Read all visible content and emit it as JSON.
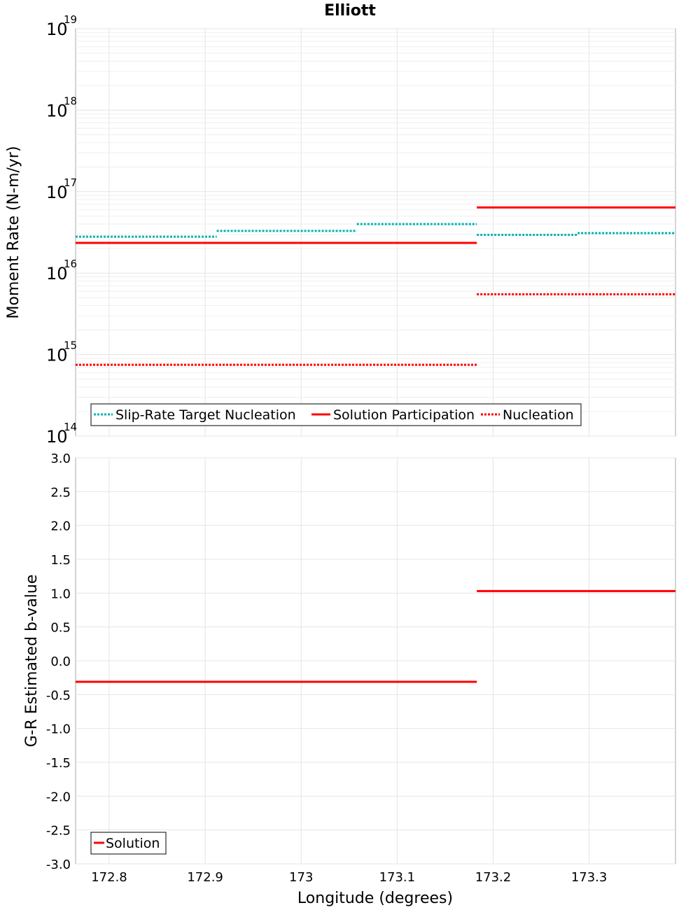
{
  "figure": {
    "title": "Elliott",
    "xlabel": "Longitude (degrees)"
  },
  "colors": {
    "target": "#00b3b3",
    "participation": "#ff0000",
    "nucleation": "#ff0000"
  },
  "chart_data": [
    {
      "type": "line",
      "panel": "moment-rate",
      "ylabel": "Moment Rate (N-m/yr)",
      "yscale": "log",
      "ylim": [
        100000000000000.0,
        1e+19
      ],
      "xlim": [
        172.765,
        173.39
      ],
      "grid": true,
      "legend_position": "bottom-left",
      "y_ticks": [
        {
          "base": "10",
          "exp": "14",
          "value": 100000000000000.0
        },
        {
          "base": "10",
          "exp": "15",
          "value": 1000000000000000.0
        },
        {
          "base": "10",
          "exp": "16",
          "value": 1e+16
        },
        {
          "base": "10",
          "exp": "17",
          "value": 1e+17
        },
        {
          "base": "10",
          "exp": "18",
          "value": 1e+18
        },
        {
          "base": "10",
          "exp": "19",
          "value": 1e+19
        }
      ],
      "series": [
        {
          "name": "Slip-Rate Target Nucleation",
          "style": "dotted",
          "color": "#00b3b3",
          "segments": [
            {
              "x": [
                172.765,
                172.912
              ],
              "y": 2.8e+16
            },
            {
              "x": [
                172.912,
                173.058
              ],
              "y": 3.3e+16
            },
            {
              "x": [
                173.058,
                173.183
              ],
              "y": 4e+16
            },
            {
              "x": [
                173.183,
                173.288
              ],
              "y": 2.95e+16
            },
            {
              "x": [
                173.288,
                173.39
              ],
              "y": 3.1e+16
            }
          ]
        },
        {
          "name": "Solution Participation",
          "style": "solid",
          "color": "#ff0000",
          "segments": [
            {
              "x": [
                172.765,
                173.183
              ],
              "y": 2.35e+16
            },
            {
              "x": [
                173.183,
                173.39
              ],
              "y": 6.4e+16
            }
          ]
        },
        {
          "name": "Nucleation",
          "style": "dotted",
          "color": "#ff0000",
          "segments": [
            {
              "x": [
                172.765,
                173.183
              ],
              "y": 750000000000000.0
            },
            {
              "x": [
                173.183,
                173.39
              ],
              "y": 5500000000000000.0
            }
          ]
        }
      ]
    },
    {
      "type": "line",
      "panel": "b-value",
      "ylabel": "G-R Estimated b-value",
      "ylim": [
        -3.0,
        3.0
      ],
      "xlim": [
        172.765,
        173.39
      ],
      "grid": true,
      "legend_position": "bottom-left",
      "y_tick_labels": [
        "3.0",
        "2.5",
        "2.0",
        "1.5",
        "1.0",
        "0.5",
        "0.0",
        "-0.5",
        "-1.0",
        "-1.5",
        "-2.0",
        "-2.5",
        "-3.0"
      ],
      "y_tick_values": [
        3.0,
        2.5,
        2.0,
        1.5,
        1.0,
        0.5,
        0.0,
        -0.5,
        -1.0,
        -1.5,
        -2.0,
        -2.5,
        -3.0
      ],
      "x_tick_labels": [
        "172.8",
        "172.9",
        "173",
        "173.1",
        "173.2",
        "173.3"
      ],
      "x_tick_values": [
        172.8,
        172.9,
        173.0,
        173.1,
        173.2,
        173.3
      ],
      "series": [
        {
          "name": "Solution",
          "style": "solid",
          "color": "#ff0000",
          "segments": [
            {
              "x": [
                172.765,
                173.183
              ],
              "y": -0.31
            },
            {
              "x": [
                173.183,
                173.39
              ],
              "y": 1.03
            }
          ]
        }
      ]
    }
  ]
}
